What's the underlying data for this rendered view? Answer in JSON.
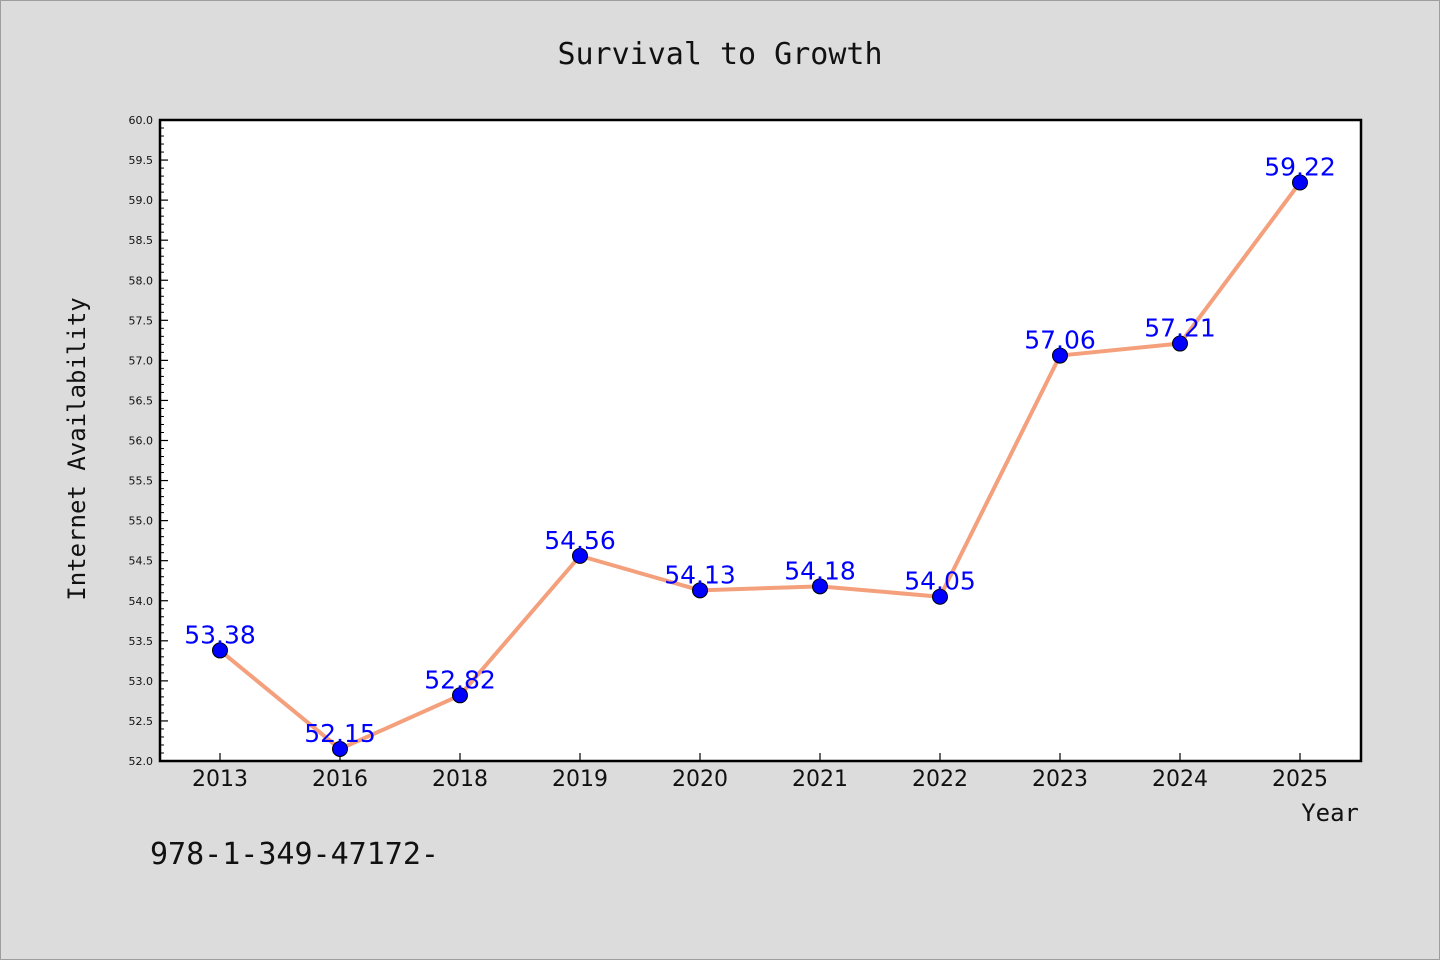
{
  "chart_data": {
    "type": "line",
    "title": "Survival to Growth",
    "xlabel": "Year",
    "ylabel": "Internet Availability",
    "categories": [
      "2013",
      "2016",
      "2018",
      "2019",
      "2020",
      "2021",
      "2022",
      "2023",
      "2024",
      "2025"
    ],
    "series": [
      {
        "values": [
          53.38,
          52.15,
          52.82,
          54.56,
          54.13,
          54.18,
          54.05,
          57.06,
          57.21,
          59.22
        ],
        "labels": [
          "53.38",
          "52.15",
          "52.82",
          "54.56",
          "54.13",
          "54.18",
          "54.05",
          "57.06",
          "57.21",
          "59.22"
        ],
        "line_color": "#f4a07c",
        "marker_color": "#0000ff"
      }
    ],
    "ylim": [
      52.0,
      60.0
    ],
    "yticks": [
      "52.0",
      "52.5",
      "53.0",
      "53.5",
      "54.0",
      "54.5",
      "55.0",
      "55.5",
      "56.0",
      "56.5",
      "57.0",
      "57.5",
      "58.0",
      "58.5",
      "59.0",
      "59.5",
      "60.0"
    ],
    "grid": false,
    "legend": "none"
  },
  "footer_text": "978-1-349-47172-"
}
